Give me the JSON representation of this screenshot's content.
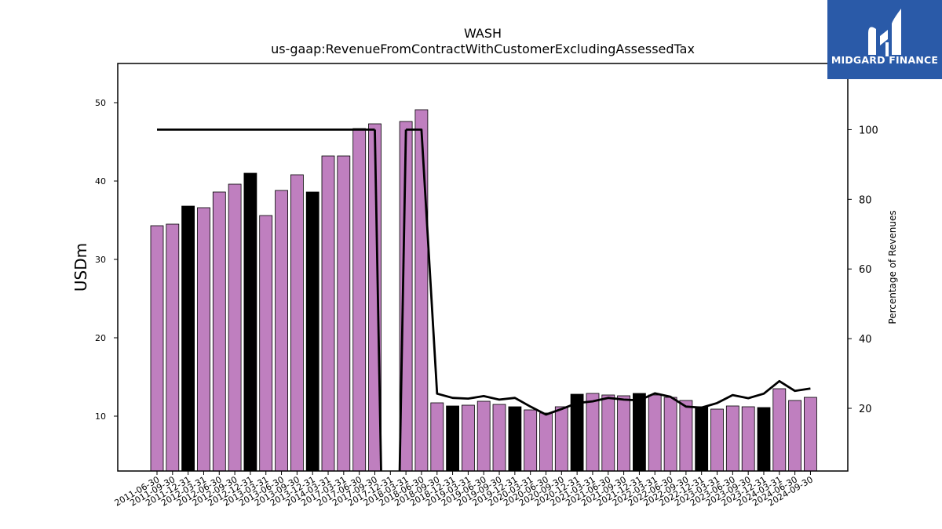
{
  "chart_data": {
    "type": "bar",
    "title": "WASH",
    "subtitle": "us-gaap:RevenueFromContractWithCustomerExcludingAssessedTax",
    "ylabel": "USDm",
    "y2label": "Percentage of Revenues",
    "ylim": [
      3.0,
      55.0
    ],
    "y2lim": [
      2,
      119
    ],
    "yticks": [
      10,
      20,
      30,
      40,
      50
    ],
    "y2ticks": [
      20,
      40,
      60,
      80,
      100
    ],
    "categories": [
      "2011-06-30",
      "2011-09-30",
      "2011-12-31",
      "2012-03-31",
      "2012-06-30",
      "2012-09-30",
      "2012-12-31",
      "2013-03-31",
      "2013-06-30",
      "2013-09-30",
      "2013-12-31",
      "2014-03-31",
      "2017-03-31",
      "2017-06-30",
      "2017-09-30",
      "2017-12-31",
      "2018-03-31",
      "2018-06-30",
      "2018-09-30",
      "2018-12-31",
      "2019-03-31",
      "2019-06-30",
      "2019-09-30",
      "2019-12-31",
      "2020-03-31",
      "2020-06-30",
      "2020-09-30",
      "2020-12-31",
      "2021-03-31",
      "2021-06-30",
      "2021-09-30",
      "2021-12-31",
      "2022-03-31",
      "2022-06-30",
      "2022-09-30",
      "2022-12-31",
      "2023-03-31",
      "2023-06-30",
      "2023-09-30",
      "2023-12-31",
      "2024-03-31",
      "2024-06-30",
      "2024-09-30"
    ],
    "series": [
      {
        "type": "bar",
        "values": [
          34.3,
          34.5,
          36.8,
          36.6,
          38.6,
          39.6,
          41.0,
          35.6,
          38.8,
          40.8,
          38.6,
          43.2,
          43.2,
          46.7,
          47.3,
          null,
          47.6,
          49.1,
          11.7,
          11.3,
          11.4,
          11.9,
          11.5,
          11.2,
          10.8,
          10.4,
          11.2,
          12.8,
          12.9,
          12.7,
          12.6,
          12.9,
          12.7,
          12.4,
          12.0,
          11.2,
          10.9,
          11.3,
          11.2,
          11.1,
          13.5,
          12.0,
          12.4
        ],
        "highlight": [
          false,
          false,
          true,
          false,
          false,
          false,
          true,
          false,
          false,
          false,
          true,
          false,
          false,
          false,
          false,
          false,
          false,
          false,
          false,
          true,
          false,
          false,
          false,
          true,
          false,
          false,
          false,
          true,
          false,
          false,
          false,
          true,
          false,
          false,
          false,
          true,
          false,
          false,
          false,
          true,
          false,
          false,
          false
        ],
        "color": "#bf7fbf",
        "highlight_color": "#000000"
      },
      {
        "type": "line",
        "axis": "right",
        "values": [
          100,
          100,
          100,
          100,
          100,
          100,
          100,
          100,
          100,
          100,
          100,
          100,
          100,
          100,
          100,
          null,
          100,
          100,
          24.2,
          23.0,
          22.8,
          23.5,
          22.5,
          23.0,
          20.5,
          18.2,
          19.8,
          21.5,
          22.0,
          23.0,
          22.5,
          22.3,
          24.3,
          23.3,
          20.5,
          20.2,
          21.5,
          23.8,
          22.9,
          24.2,
          27.8,
          25.0,
          25.7
        ],
        "color": "#000000"
      }
    ]
  },
  "logo": {
    "text": "MIDGARD FINANCE",
    "color": "#2a5aa8"
  }
}
